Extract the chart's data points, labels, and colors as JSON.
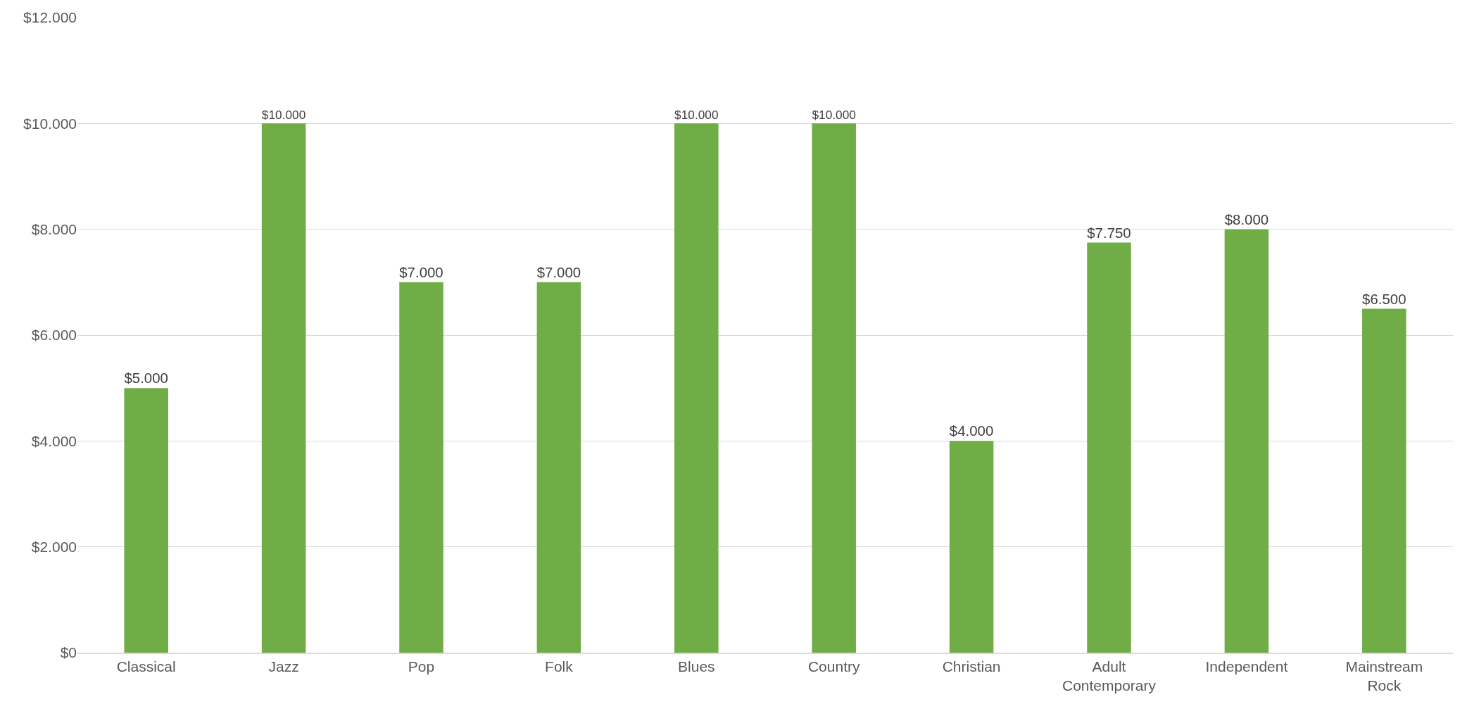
{
  "chart_data": {
    "type": "bar",
    "categories": [
      "Classical",
      "Jazz",
      "Pop",
      "Folk",
      "Blues",
      "Country",
      "Christian",
      "Adult Contemporary",
      "Independent",
      "Mainstream Rock"
    ],
    "values": [
      5000,
      10000,
      7000,
      7000,
      10000,
      10000,
      4000,
      7750,
      8000,
      6500
    ],
    "value_labels": [
      "$5.000",
      "$10.000",
      "$7.000",
      "$7.000",
      "$10.000",
      "$10.000",
      "$4.000",
      "$7.750",
      "$8.000",
      "$6.500"
    ],
    "color": "#70ad47",
    "ylim": [
      0,
      12000
    ],
    "yticks": [
      {
        "value": 0,
        "label": "$0"
      },
      {
        "value": 2000,
        "label": "$2.000"
      },
      {
        "value": 4000,
        "label": "$4.000"
      },
      {
        "value": 6000,
        "label": "$6.000"
      },
      {
        "value": 8000,
        "label": "$8.000"
      },
      {
        "value": 10000,
        "label": "$10.000"
      },
      {
        "value": 12000,
        "label": "$12.000"
      }
    ],
    "grid": "y",
    "legend": false
  }
}
